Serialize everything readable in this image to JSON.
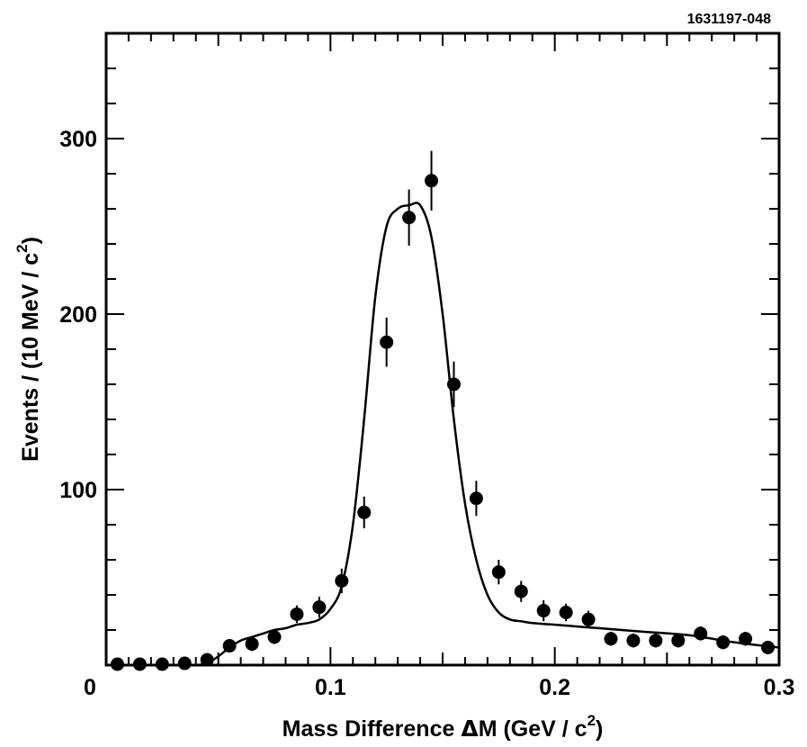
{
  "figure_id": "1631197-048",
  "chart_data": {
    "type": "scatter",
    "title": "",
    "xlabel_main": "Mass  Difference  ",
    "xlabel_delta": "Δ",
    "xlabel_rest": "M (GeV / c",
    "xlabel_sup": "2",
    "xlabel_close": ")",
    "ylabel_main": "Events / (10 MeV / c",
    "ylabel_sup": "2",
    "ylabel_close": ")",
    "xlim": [
      0,
      0.3
    ],
    "ylim": [
      0,
      360
    ],
    "x_tick_labels": [
      "0",
      "0.1",
      "0.2",
      "0.3"
    ],
    "y_tick_labels": [
      "100",
      "200",
      "300"
    ],
    "series": [
      {
        "name": "data",
        "marker": "filled-circle",
        "x": [
          0.005,
          0.015,
          0.025,
          0.035,
          0.045,
          0.055,
          0.065,
          0.075,
          0.085,
          0.095,
          0.105,
          0.115,
          0.125,
          0.135,
          0.145,
          0.155,
          0.165,
          0.175,
          0.185,
          0.195,
          0.205,
          0.215,
          0.225,
          0.235,
          0.245,
          0.255,
          0.265,
          0.275,
          0.285,
          0.295
        ],
        "y": [
          0,
          0,
          0,
          1,
          3,
          11,
          12,
          16,
          29,
          33,
          48,
          87,
          184,
          255,
          276,
          160,
          95,
          53,
          42,
          31,
          30,
          26,
          15,
          14,
          14,
          14,
          18,
          13,
          15,
          10
        ],
        "err": [
          0,
          0,
          0,
          1,
          2,
          3,
          4,
          4,
          5,
          6,
          7,
          9,
          14,
          16,
          17,
          13,
          10,
          7,
          6,
          6,
          5,
          5,
          4,
          4,
          4,
          4,
          4,
          4,
          4,
          3
        ]
      },
      {
        "name": "fit",
        "style": "line",
        "x": [
          0.04,
          0.045,
          0.05,
          0.055,
          0.06,
          0.065,
          0.07,
          0.075,
          0.08,
          0.085,
          0.09,
          0.095,
          0.1,
          0.105,
          0.11,
          0.115,
          0.12,
          0.125,
          0.13,
          0.135,
          0.14,
          0.145,
          0.15,
          0.155,
          0.16,
          0.165,
          0.17,
          0.175,
          0.18,
          0.185,
          0.19,
          0.2,
          0.21,
          0.22,
          0.24,
          0.26,
          0.28,
          0.3
        ],
        "y": [
          0,
          1,
          5,
          10,
          14,
          16,
          18,
          20,
          21,
          23,
          24,
          26,
          32,
          45,
          80,
          140,
          210,
          250,
          260,
          262,
          262,
          244,
          200,
          140,
          92,
          60,
          40,
          30,
          26,
          25,
          24,
          23,
          22,
          21,
          19,
          17,
          13,
          10
        ]
      }
    ]
  }
}
